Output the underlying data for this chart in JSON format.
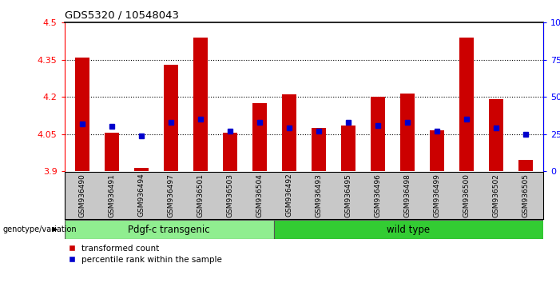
{
  "title": "GDS5320 / 10548043",
  "samples": [
    "GSM936490",
    "GSM936491",
    "GSM936494",
    "GSM936497",
    "GSM936501",
    "GSM936503",
    "GSM936504",
    "GSM936492",
    "GSM936493",
    "GSM936495",
    "GSM936496",
    "GSM936498",
    "GSM936499",
    "GSM936500",
    "GSM936502",
    "GSM936505"
  ],
  "red_values": [
    4.36,
    4.055,
    3.912,
    4.33,
    4.44,
    4.055,
    4.175,
    4.21,
    4.075,
    4.085,
    4.2,
    4.215,
    4.065,
    4.44,
    4.19,
    3.945
  ],
  "blue_pct": [
    32,
    30,
    24,
    33,
    35,
    27,
    33,
    29,
    27,
    33,
    31,
    33,
    27,
    35,
    29,
    25
  ],
  "group1_label": "Pdgf-c transgenic",
  "group2_label": "wild type",
  "group1_count": 7,
  "group2_count": 9,
  "genotype_label": "genotype/variation",
  "ylim_left": [
    3.9,
    4.5
  ],
  "ylim_right": [
    0,
    100
  ],
  "yticks_left": [
    3.9,
    4.05,
    4.2,
    4.35,
    4.5
  ],
  "yticks_right": [
    0,
    25,
    50,
    75,
    100
  ],
  "hlines": [
    4.05,
    4.2,
    4.35
  ],
  "bar_color": "#CC0000",
  "blue_color": "#0000CC",
  "group1_bg": "#90EE90",
  "group2_bg": "#33CC33",
  "xtick_bg": "#C8C8C8",
  "legend_red": "transformed count",
  "legend_blue": "percentile rank within the sample",
  "base": 3.9
}
